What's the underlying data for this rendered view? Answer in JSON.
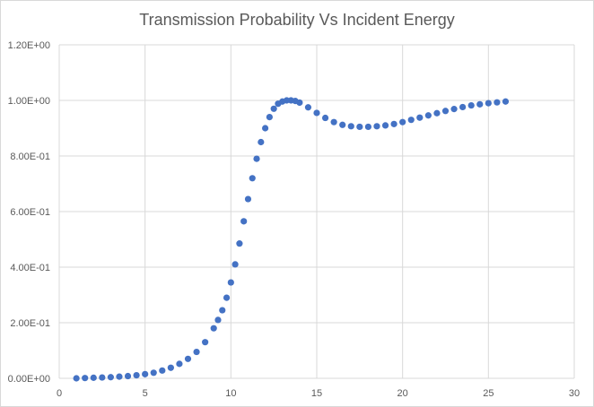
{
  "chart_data": {
    "type": "scatter",
    "title": "Transmission Probability Vs Incident Energy",
    "xlabel": "",
    "ylabel": "",
    "xlim": [
      0,
      30
    ],
    "ylim": [
      0,
      1.2
    ],
    "x_ticks": [
      0,
      5,
      10,
      15,
      20,
      25,
      30
    ],
    "x_tick_labels": [
      "0",
      "5",
      "10",
      "15",
      "20",
      "25",
      "30"
    ],
    "y_ticks": [
      0,
      0.2,
      0.4,
      0.6,
      0.8,
      1.0,
      1.2
    ],
    "y_tick_labels": [
      "0.00E+00",
      "2.00E-01",
      "4.00E-01",
      "6.00E-01",
      "8.00E-01",
      "1.00E+00",
      "1.20E+00"
    ],
    "grid": true,
    "legend": "none",
    "marker_color": "#4472c4",
    "gridline_color": "#d9d9d9",
    "series": [
      {
        "x": [
          1,
          1.5,
          2,
          2.5,
          3,
          3.5,
          4,
          4.5,
          5,
          5.5,
          6,
          6.5,
          7,
          7.5,
          8,
          8.5,
          9,
          9.25,
          9.5,
          9.75,
          10,
          10.25,
          10.5,
          10.75,
          11,
          11.25,
          11.5,
          11.75,
          12,
          12.25,
          12.5,
          12.75,
          13,
          13.25,
          13.5,
          13.75,
          14,
          14.5,
          15,
          15.5,
          16,
          16.5,
          17,
          17.5,
          18,
          18.5,
          19,
          19.5,
          20,
          20.5,
          21,
          21.5,
          22,
          22.5,
          23,
          23.5,
          24,
          24.5,
          25,
          25.5,
          26
        ],
        "y": [
          0.0,
          0.001,
          0.002,
          0.003,
          0.004,
          0.006,
          0.008,
          0.011,
          0.015,
          0.02,
          0.028,
          0.038,
          0.052,
          0.07,
          0.095,
          0.13,
          0.18,
          0.21,
          0.245,
          0.29,
          0.345,
          0.41,
          0.485,
          0.565,
          0.645,
          0.72,
          0.79,
          0.85,
          0.9,
          0.94,
          0.97,
          0.988,
          0.996,
          1.0,
          1.0,
          0.998,
          0.992,
          0.975,
          0.955,
          0.937,
          0.922,
          0.912,
          0.907,
          0.905,
          0.905,
          0.907,
          0.91,
          0.915,
          0.922,
          0.93,
          0.938,
          0.946,
          0.954,
          0.962,
          0.969,
          0.976,
          0.982,
          0.986,
          0.99,
          0.993,
          0.996
        ]
      }
    ]
  }
}
